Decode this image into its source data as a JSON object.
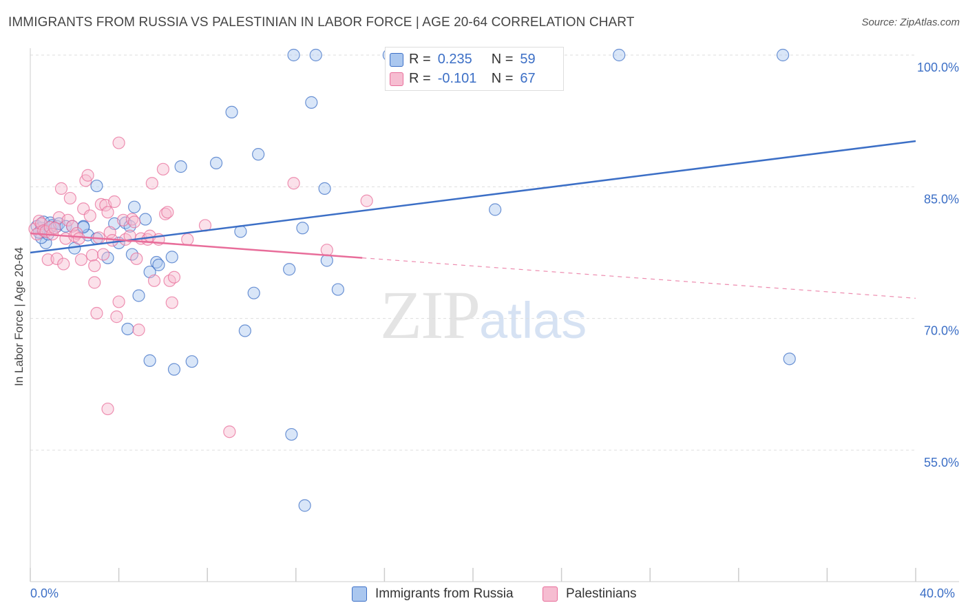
{
  "title": "IMMIGRANTS FROM RUSSIA VS PALESTINIAN IN LABOR FORCE | AGE 20-64 CORRELATION CHART",
  "source": "Source: ZipAtlas.com",
  "watermark": {
    "zip": "ZIP",
    "atlas": "atlas"
  },
  "colors": {
    "blue": "#3c6fc6",
    "pink": "#e86d9a",
    "blue_fill": "#aac7ef",
    "pink_fill": "#f6bdd1",
    "grid": "#dddddd"
  },
  "legend": {
    "rows": [
      {
        "r_label": "R =",
        "r_value": "0.235",
        "n_label": "N =",
        "n_value": "59",
        "color": "#aac7ef"
      },
      {
        "r_label": "R =",
        "r_value": "-0.101",
        "n_label": "N =",
        "n_value": "67",
        "color": "#f6bdd1"
      }
    ]
  },
  "bottom_legend": [
    {
      "label": "Immigrants from Russia",
      "color": "#aac7ef"
    },
    {
      "label": "Palestinians",
      "color": "#f6bdd1"
    }
  ],
  "chart_data": {
    "type": "scatter",
    "title": "IMMIGRANTS FROM RUSSIA VS PALESTINIAN IN LABOR FORCE | AGE 20-64 CORRELATION CHART",
    "xlabel": "",
    "ylabel": "In Labor Force | Age 20-64",
    "xlim": [
      0,
      40
    ],
    "ylim": [
      42,
      102
    ],
    "x_tick_labels": [
      "0.0%",
      "40.0%"
    ],
    "y_ticks": [
      55,
      70,
      85,
      100
    ],
    "y_tick_labels": [
      "55.0%",
      "70.0%",
      "85.0%",
      "100.0%"
    ],
    "grid": true,
    "legend_position": "top-center",
    "series": [
      {
        "name": "Immigrants from Russia",
        "color": "#3c6fc6",
        "trend": {
          "x": [
            0,
            40
          ],
          "y": [
            77.5,
            90.2
          ]
        },
        "points": [
          [
            0.3,
            80.5
          ],
          [
            0.5,
            80.3
          ],
          [
            0.6,
            81.0
          ],
          [
            0.7,
            78.6
          ],
          [
            0.5,
            79.2
          ],
          [
            0.9,
            80.9
          ],
          [
            1.0,
            80.6
          ],
          [
            1.2,
            80.5
          ],
          [
            1.3,
            80.8
          ],
          [
            0.8,
            79.6
          ],
          [
            1.6,
            80.5
          ],
          [
            1.9,
            80.5
          ],
          [
            2.0,
            78.0
          ],
          [
            2.4,
            80.5
          ],
          [
            2.6,
            79.5
          ],
          [
            2.4,
            80.4
          ],
          [
            3.0,
            79.1
          ],
          [
            3.0,
            85.1
          ],
          [
            3.5,
            76.9
          ],
          [
            3.8,
            80.8
          ],
          [
            4.0,
            78.6
          ],
          [
            4.3,
            80.9
          ],
          [
            4.4,
            68.8
          ],
          [
            4.5,
            80.5
          ],
          [
            4.6,
            77.3
          ],
          [
            4.7,
            82.7
          ],
          [
            4.9,
            72.6
          ],
          [
            5.2,
            81.3
          ],
          [
            5.4,
            75.3
          ],
          [
            5.4,
            65.2
          ],
          [
            5.7,
            76.4
          ],
          [
            5.8,
            76.1
          ],
          [
            6.4,
            77.0
          ],
          [
            6.5,
            64.2
          ],
          [
            6.8,
            87.3
          ],
          [
            7.3,
            65.1
          ],
          [
            8.4,
            87.7
          ],
          [
            9.1,
            93.5
          ],
          [
            9.5,
            79.9
          ],
          [
            9.7,
            68.6
          ],
          [
            10.1,
            72.9
          ],
          [
            10.3,
            88.7
          ],
          [
            11.7,
            75.6
          ],
          [
            11.8,
            56.8
          ],
          [
            11.9,
            100.0
          ],
          [
            12.3,
            80.3
          ],
          [
            12.4,
            48.7
          ],
          [
            12.9,
            100.0
          ],
          [
            12.7,
            94.6
          ],
          [
            13.3,
            84.8
          ],
          [
            13.4,
            76.6
          ],
          [
            13.9,
            73.3
          ],
          [
            16.2,
            100.0
          ],
          [
            21.3,
            96.9
          ],
          [
            21.0,
            82.4
          ],
          [
            26.6,
            100.0
          ],
          [
            34.0,
            100.0
          ],
          [
            34.3,
            65.4
          ],
          [
            0.4,
            79.8
          ]
        ]
      },
      {
        "name": "Palestinians",
        "color": "#e86d9a",
        "trend": {
          "x": [
            0,
            15
          ],
          "y": [
            79.7,
            76.9
          ]
        },
        "trend_extended": {
          "x": [
            15,
            40
          ],
          "y": [
            76.9,
            72.3
          ]
        },
        "points": [
          [
            0.2,
            80.2
          ],
          [
            0.3,
            79.6
          ],
          [
            0.4,
            81.1
          ],
          [
            0.5,
            80.8
          ],
          [
            0.6,
            80.0
          ],
          [
            0.7,
            79.9
          ],
          [
            0.8,
            76.7
          ],
          [
            0.9,
            80.4
          ],
          [
            1.0,
            79.6
          ],
          [
            1.1,
            80.3
          ],
          [
            1.2,
            76.8
          ],
          [
            1.3,
            81.5
          ],
          [
            1.4,
            84.8
          ],
          [
            1.5,
            76.2
          ],
          [
            1.6,
            79.1
          ],
          [
            1.7,
            81.2
          ],
          [
            1.8,
            83.7
          ],
          [
            1.9,
            80.5
          ],
          [
            2.0,
            79.4
          ],
          [
            2.1,
            79.7
          ],
          [
            2.2,
            79.1
          ],
          [
            2.3,
            76.7
          ],
          [
            2.4,
            82.5
          ],
          [
            2.5,
            85.7
          ],
          [
            2.6,
            86.3
          ],
          [
            2.7,
            81.7
          ],
          [
            2.8,
            77.2
          ],
          [
            2.9,
            76.0
          ],
          [
            2.9,
            74.1
          ],
          [
            3.0,
            70.6
          ],
          [
            3.1,
            79.2
          ],
          [
            3.2,
            83.0
          ],
          [
            3.3,
            77.3
          ],
          [
            3.4,
            82.9
          ],
          [
            3.5,
            82.1
          ],
          [
            3.6,
            79.8
          ],
          [
            3.7,
            78.9
          ],
          [
            3.8,
            83.3
          ],
          [
            3.9,
            70.2
          ],
          [
            4.0,
            71.9
          ],
          [
            4.0,
            90.0
          ],
          [
            4.2,
            81.2
          ],
          [
            4.3,
            79.0
          ],
          [
            4.5,
            79.4
          ],
          [
            4.6,
            81.3
          ],
          [
            4.7,
            81.0
          ],
          [
            4.8,
            76.8
          ],
          [
            4.9,
            68.7
          ],
          [
            5.0,
            79.1
          ],
          [
            5.3,
            79.0
          ],
          [
            5.4,
            79.4
          ],
          [
            5.6,
            74.3
          ],
          [
            5.5,
            85.4
          ],
          [
            5.8,
            79.0
          ],
          [
            6.0,
            87.0
          ],
          [
            6.1,
            81.9
          ],
          [
            6.2,
            82.1
          ],
          [
            6.3,
            74.3
          ],
          [
            6.4,
            71.8
          ],
          [
            6.5,
            74.7
          ],
          [
            7.1,
            79.0
          ],
          [
            7.9,
            80.6
          ],
          [
            9.0,
            57.1
          ],
          [
            11.9,
            85.4
          ],
          [
            13.4,
            77.8
          ],
          [
            15.2,
            83.4
          ],
          [
            3.5,
            59.7
          ]
        ]
      }
    ]
  }
}
